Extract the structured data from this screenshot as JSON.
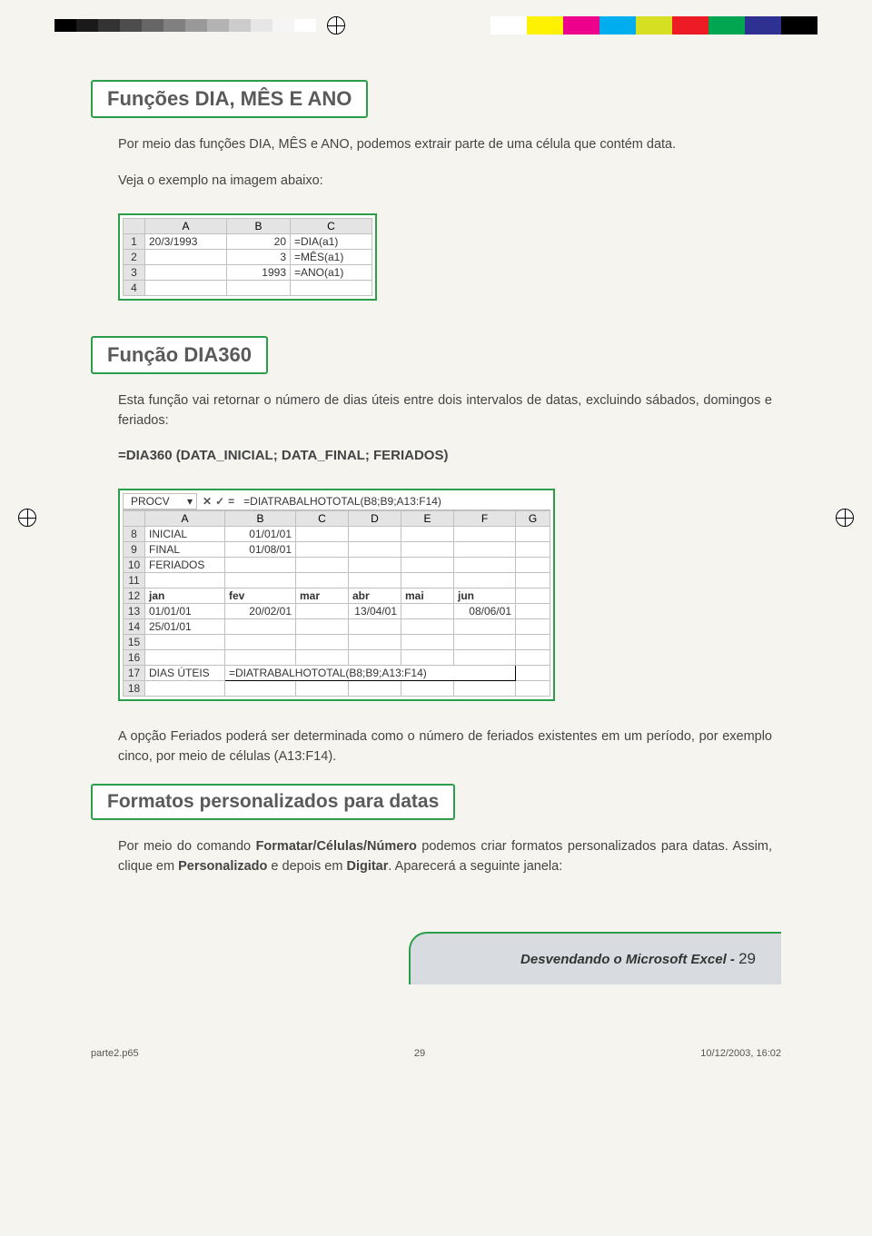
{
  "colorbar": {
    "bw": [
      "#000000",
      "#1a1a1a",
      "#333333",
      "#4d4d4d",
      "#666666",
      "#808080",
      "#999999",
      "#b3b3b3",
      "#cccccc",
      "#e6e6e6",
      "#f5f5f5",
      "#ffffff"
    ],
    "colors": [
      "#ffffff",
      "#fff200",
      "#ec008c",
      "#00aeef",
      "#d7df23",
      "#ed1c24",
      "#00a651",
      "#2e3192",
      "#000000"
    ]
  },
  "section1": {
    "title": "Funções DIA, MÊS E ANO",
    "para": "Por meio das funções DIA, MÊS e ANO, podemos extrair parte de uma célula que contém data.",
    "para2": "Veja o exemplo na imagem abaixo:"
  },
  "excel1": {
    "cols": [
      "",
      "A",
      "B",
      "C"
    ],
    "widths": [
      24,
      90,
      70,
      90
    ],
    "rows": [
      [
        "1",
        "20/3/1993",
        "20",
        "=DIA(a1)"
      ],
      [
        "2",
        "",
        "3",
        "=MÊS(a1)"
      ],
      [
        "3",
        "",
        "1993",
        "=ANO(a1)"
      ],
      [
        "4",
        "",
        "",
        ""
      ]
    ]
  },
  "section2": {
    "title": "Função DIA360",
    "para": "Esta função vai retornar o número de dias úteis entre dois intervalos de datas, excluindo sábados, domingos e feriados:",
    "formula": "=DIA360 (DATA_INICIAL; DATA_FINAL; FERIADOS)"
  },
  "excel2": {
    "namebox": "PROCV",
    "fbar_btns": [
      "✕",
      "✓",
      "="
    ],
    "fbar_formula": "=DIATRABALHOTOTAL(B8;B9;A13:F14)",
    "cols": [
      "",
      "A",
      "B",
      "C",
      "D",
      "E",
      "F",
      "G"
    ],
    "widths": [
      24,
      88,
      78,
      58,
      58,
      58,
      68,
      38
    ],
    "rows": [
      [
        "8",
        "INICIAL",
        "01/01/01",
        "",
        "",
        "",
        "",
        ""
      ],
      [
        "9",
        "FINAL",
        "01/08/01",
        "",
        "",
        "",
        "",
        ""
      ],
      [
        "10",
        "FERIADOS",
        "",
        "",
        "",
        "",
        "",
        ""
      ],
      [
        "11",
        "",
        "",
        "",
        "",
        "",
        "",
        ""
      ],
      [
        "12",
        "jan",
        "fev",
        "mar",
        "abr",
        "mai",
        "jun",
        ""
      ],
      [
        "13",
        "01/01/01",
        "20/02/01",
        "",
        "13/04/01",
        "",
        "08/06/01",
        ""
      ],
      [
        "14",
        "25/01/01",
        "",
        "",
        "",
        "",
        "",
        ""
      ],
      [
        "15",
        "",
        "",
        "",
        "",
        "",
        "",
        ""
      ],
      [
        "16",
        "",
        "",
        "",
        "",
        "",
        "",
        ""
      ],
      [
        "17",
        "DIAS ÚTEIS",
        "=DIATRABALHOTOTAL(B8;B9;A13:F14)",
        "",
        "",
        "",
        "",
        ""
      ],
      [
        "18",
        "",
        "",
        "",
        "",
        "",
        "",
        ""
      ]
    ],
    "boldRow": "12",
    "colspanRow": "17"
  },
  "para_after_excel2": "A opção Feriados poderá ser determinada como o número de feriados existentes em um período, por exemplo cinco, por meio  de células (A13:F14).",
  "section3": {
    "title": "Formatos personalizados para datas",
    "para_prefix": "Por meio do comando ",
    "cmd": "Formatar/Células/Número",
    "para_mid": " podemos criar formatos personalizados para datas. Assim, clique em ",
    "w1": "Personalizado",
    "mid2": " e depois em ",
    "w2": "Digitar",
    "suffix": ". Aparecerá a seguinte janela:"
  },
  "footer": {
    "title": "Desvendando o Microsoft Excel -",
    "page": "29"
  },
  "meta": {
    "file": "parte2.p65",
    "pg": "29",
    "ts": "10/12/2003, 16:02"
  }
}
